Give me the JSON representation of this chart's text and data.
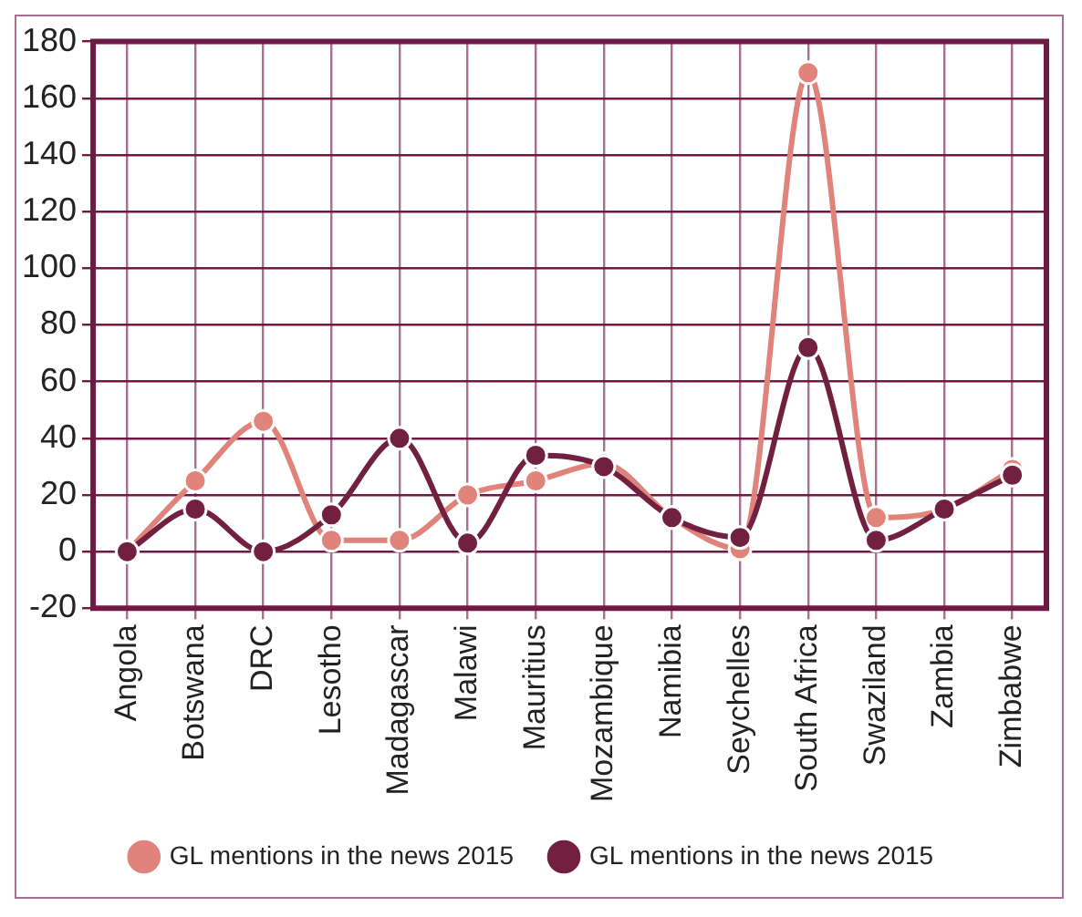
{
  "chart_data": {
    "type": "line",
    "categories": [
      "Angola",
      "Botswana",
      "DRC",
      "Lesotho",
      "Madagascar",
      "Malawi",
      "Mauritius",
      "Mozambique",
      "Namibia",
      "Seychelles",
      "South Africa",
      "Swaziland",
      "Zambia",
      "Zimbabwe"
    ],
    "series": [
      {
        "name": "GL mentions in the news 2015",
        "color": "#e0837a",
        "values": [
          0,
          25,
          46,
          4,
          4,
          20,
          25,
          31,
          12,
          1,
          169,
          12,
          15,
          29
        ]
      },
      {
        "name": "GL mentions in the news 2015",
        "color": "#722040",
        "values": [
          0,
          15,
          0,
          13,
          40,
          3,
          34,
          30,
          12,
          5,
          72,
          4,
          15,
          27
        ]
      }
    ],
    "ylim": [
      -20,
      180
    ],
    "yticks": [
      -20,
      0,
      20,
      40,
      60,
      80,
      100,
      120,
      140,
      160,
      180
    ],
    "grid": true,
    "legend": "bottom",
    "marker": "circle",
    "line_style": "solid"
  }
}
